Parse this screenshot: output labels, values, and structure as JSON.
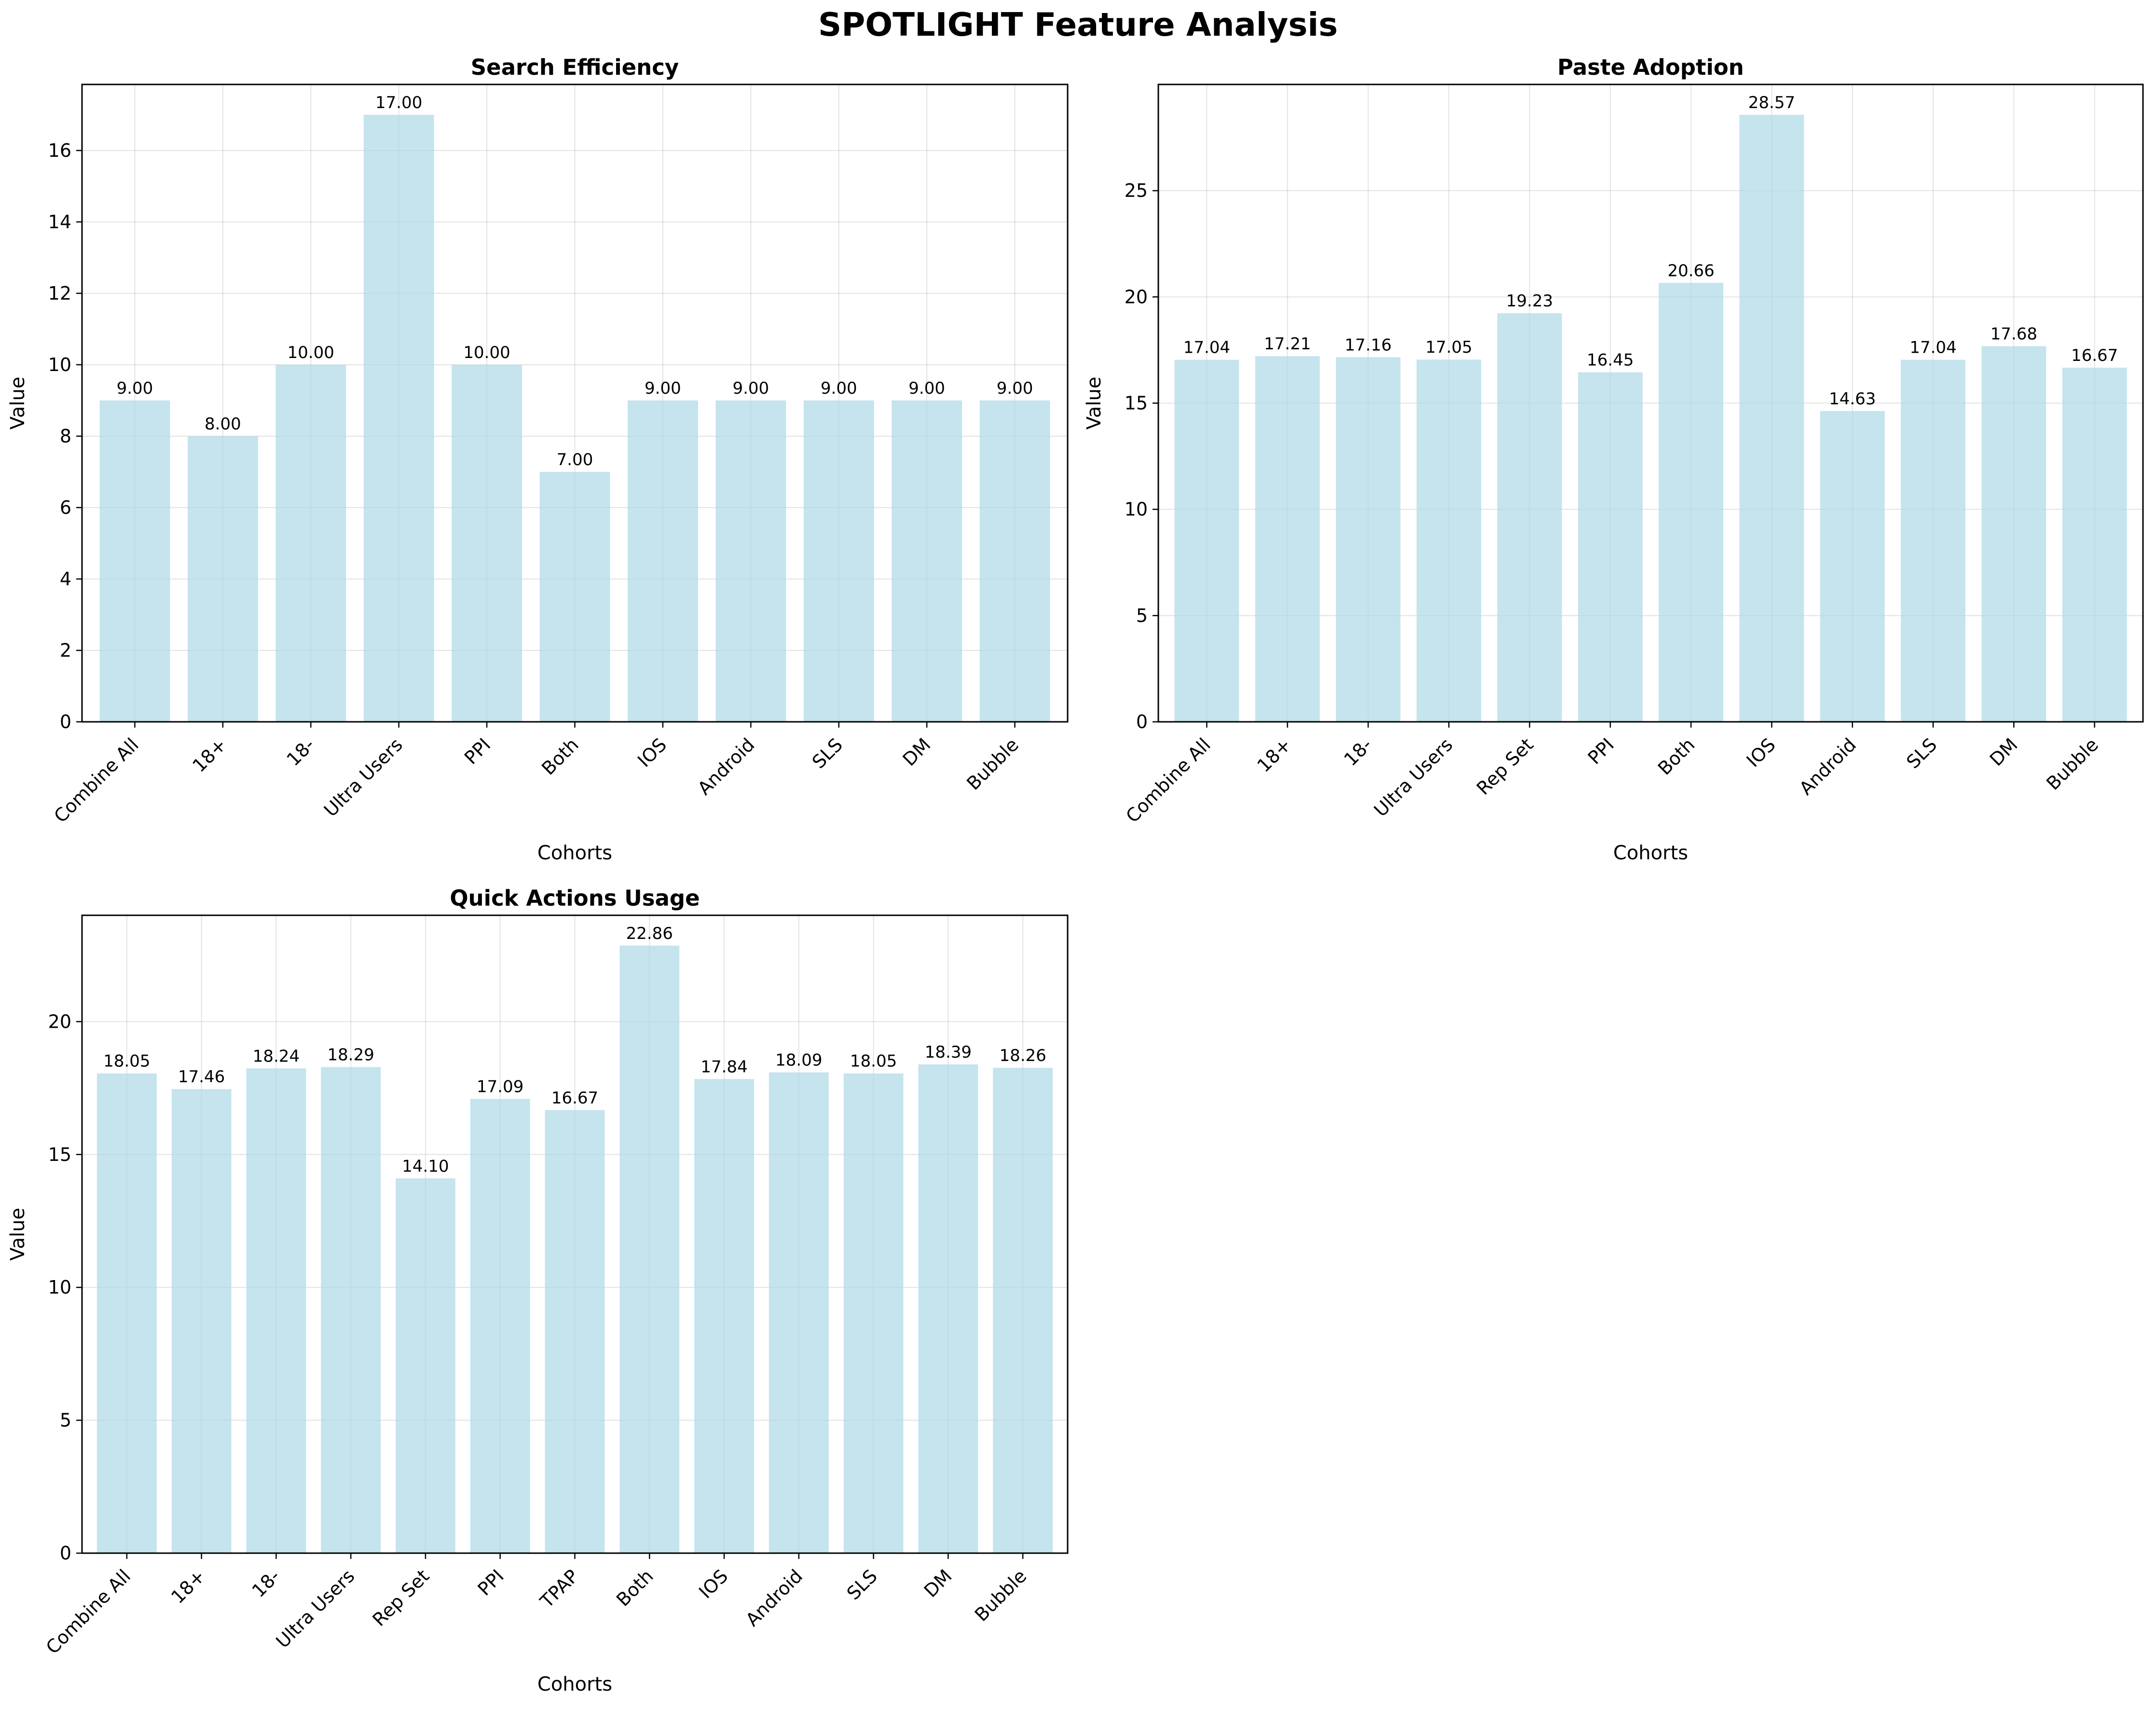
{
  "figure": {
    "suptitle": "SPOTLIGHT Feature Analysis",
    "bar_color": "#add8e6",
    "text_color": "#000000"
  },
  "chart_data": [
    {
      "type": "bar",
      "title": "Search Efficiency",
      "xlabel": "Cohorts",
      "ylabel": "Value",
      "categories": [
        "Combine All",
        "18+",
        "18-",
        "Ultra Users",
        "PPI",
        "Both",
        "IOS",
        "Android",
        "SLS",
        "DM",
        "Bubble"
      ],
      "values": [
        9.0,
        8.0,
        10.0,
        17.0,
        10.0,
        7.0,
        9.0,
        9.0,
        9.0,
        9.0,
        9.0
      ],
      "value_labels": [
        "9.00",
        "8.00",
        "10.00",
        "17.00",
        "10.00",
        "7.00",
        "9.00",
        "9.00",
        "9.00",
        "9.00",
        "9.00"
      ],
      "ylim": [
        0,
        17.85
      ],
      "yticks": [
        0,
        2,
        4,
        6,
        8,
        10,
        12,
        14,
        16
      ],
      "grid": true
    },
    {
      "type": "bar",
      "title": "Paste Adoption",
      "xlabel": "Cohorts",
      "ylabel": "Value",
      "categories": [
        "Combine All",
        "18+",
        "18-",
        "Ultra Users",
        "Rep Set",
        "PPI",
        "Both",
        "IOS",
        "Android",
        "SLS",
        "DM",
        "Bubble"
      ],
      "values": [
        17.04,
        17.21,
        17.16,
        17.05,
        19.23,
        16.45,
        20.66,
        28.57,
        14.63,
        17.04,
        17.68,
        16.67
      ],
      "value_labels": [
        "17.04",
        "17.21",
        "17.16",
        "17.05",
        "19.23",
        "16.45",
        "20.66",
        "28.57",
        "14.63",
        "17.04",
        "17.68",
        "16.67"
      ],
      "ylim": [
        0,
        30.0
      ],
      "yticks": [
        0,
        5,
        10,
        15,
        20,
        25
      ],
      "grid": true
    },
    {
      "type": "bar",
      "title": "Quick Actions Usage",
      "xlabel": "Cohorts",
      "ylabel": "Value",
      "categories": [
        "Combine All",
        "18+",
        "18-",
        "Ultra Users",
        "Rep Set",
        "PPI",
        "TPAP",
        "Both",
        "IOS",
        "Android",
        "SLS",
        "DM",
        "Bubble"
      ],
      "values": [
        18.05,
        17.46,
        18.24,
        18.29,
        14.1,
        17.09,
        16.67,
        22.86,
        17.84,
        18.09,
        18.05,
        18.39,
        18.26
      ],
      "value_labels": [
        "18.05",
        "17.46",
        "18.24",
        "18.29",
        "14.10",
        "17.09",
        "16.67",
        "22.86",
        "17.84",
        "18.09",
        "18.05",
        "18.39",
        "18.26"
      ],
      "ylim": [
        0,
        24.0
      ],
      "yticks": [
        0,
        5,
        10,
        15,
        20
      ],
      "grid": true
    }
  ]
}
